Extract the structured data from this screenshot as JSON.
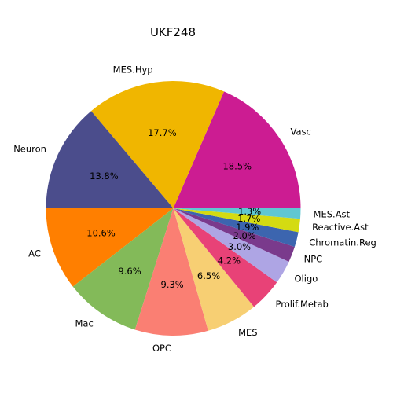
{
  "chart_data": {
    "type": "pie",
    "title": "UKF248",
    "start_angle_deg": 0,
    "direction": "counterclockwise",
    "slices": [
      {
        "label": "Vasc",
        "value": 18.5,
        "pct_label": "18.5%",
        "color": "#CC1C92"
      },
      {
        "label": "MES.Hyp",
        "value": 17.7,
        "pct_label": "17.7%",
        "color": "#F0B600"
      },
      {
        "label": "Neuron",
        "value": 13.8,
        "pct_label": "13.8%",
        "color": "#4B4D8C"
      },
      {
        "label": "AC",
        "value": 10.6,
        "pct_label": "10.6%",
        "color": "#FF7F00"
      },
      {
        "label": "Mac",
        "value": 9.6,
        "pct_label": "9.6%",
        "color": "#83BA59"
      },
      {
        "label": "OPC",
        "value": 9.3,
        "pct_label": "9.3%",
        "color": "#FA7F73"
      },
      {
        "label": "MES",
        "value": 6.5,
        "pct_label": "6.5%",
        "color": "#F7CF73"
      },
      {
        "label": "Prolif.Metab",
        "value": 4.2,
        "pct_label": "4.2%",
        "color": "#E84277"
      },
      {
        "label": "Oligo",
        "value": 3.0,
        "pct_label": "3.0%",
        "color": "#AEA5E4"
      },
      {
        "label": "NPC",
        "value": 2.0,
        "pct_label": "2.0%",
        "color": "#7A3A8C"
      },
      {
        "label": "Chromatin.Reg",
        "value": 1.9,
        "pct_label": "1.9%",
        "color": "#3C65AF"
      },
      {
        "label": "Reactive.Ast",
        "value": 1.7,
        "pct_label": "1.7%",
        "color": "#D4DB12"
      },
      {
        "label": "MES.Ast",
        "value": 1.3,
        "pct_label": "1.3%",
        "color": "#5FC7D2"
      }
    ]
  }
}
